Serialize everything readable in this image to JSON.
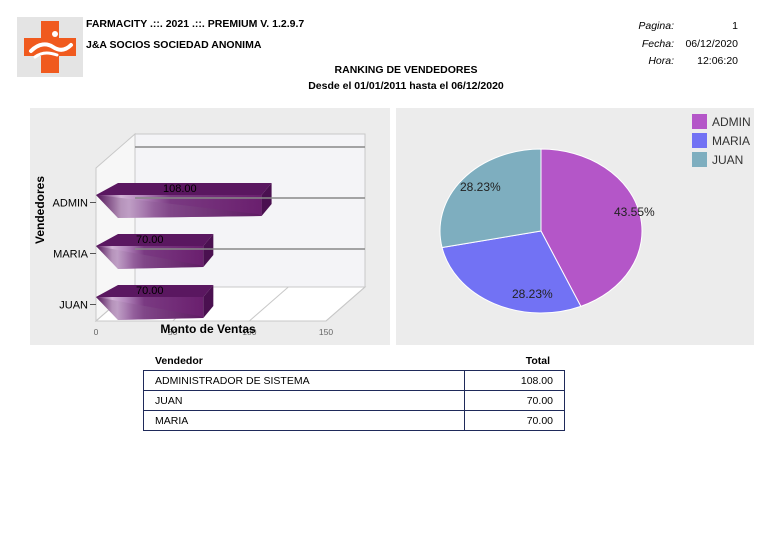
{
  "header": {
    "app_title": "FARMACITY .::. 2021 .::. PREMIUM V. 1.2.9.7",
    "company": "J&A SOCIOS SOCIEDAD ANONIMA",
    "pagina_label": "Pagina:",
    "pagina_value": "1",
    "fecha_label": "Fecha:",
    "fecha_value": "06/12/2020",
    "hora_label": "Hora:",
    "hora_value": "12:06:20"
  },
  "report": {
    "title": "RANKING DE VENDEDORES",
    "subtitle": "Desde el 01/01/2011 hasta el 06/12/2020"
  },
  "colors": {
    "bar": "#6a1f6e",
    "admin": "#b456c8",
    "maria": "#7272f4",
    "juan": "#7eaebf",
    "panel": "#ececec"
  },
  "chart_data": [
    {
      "type": "bar",
      "orientation": "horizontal",
      "categories": [
        "ADMIN",
        "MARIA",
        "JUAN"
      ],
      "values": [
        108.0,
        70.0,
        70.0
      ],
      "value_labels": [
        "108.00",
        "70.00",
        "70.00"
      ],
      "xlabel": "Monto de Ventas",
      "ylabel": "Vendedores",
      "xlim": [
        0,
        150
      ],
      "xticks": [
        "0",
        "50",
        "100",
        "150"
      ],
      "grid": true,
      "three_d": true
    },
    {
      "type": "pie",
      "labels": [
        "ADMIN",
        "MARIA",
        "JUAN"
      ],
      "values": [
        43.55,
        28.23,
        28.23
      ],
      "slice_labels": [
        "43.55%",
        "28.23%",
        "28.23%"
      ],
      "legend": "top-right",
      "colors": [
        "#b456c8",
        "#7272f4",
        "#7eaebf"
      ]
    }
  ],
  "table": {
    "headers": {
      "vendedor": "Vendedor",
      "total": "Total"
    },
    "rows": [
      {
        "vendedor": "ADMINISTRADOR DE SISTEMA",
        "total": "108.00"
      },
      {
        "vendedor": "JUAN",
        "total": "70.00"
      },
      {
        "vendedor": "MARIA",
        "total": "70.00"
      }
    ]
  }
}
